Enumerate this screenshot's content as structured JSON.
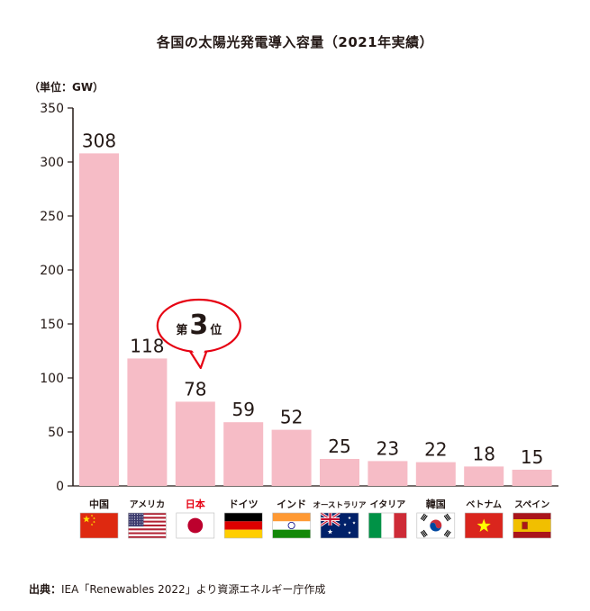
{
  "chart_data": {
    "type": "bar",
    "title": "各国の太陽光発電導入容量（2021年実績）",
    "unit_label": "（単位：GW）",
    "categories": [
      "中国",
      "アメリカ",
      "日本",
      "ドイツ",
      "インド",
      "オーストラリア",
      "イタリア",
      "韓国",
      "ベトナム",
      "スペイン"
    ],
    "values": [
      308,
      118,
      78,
      59,
      52,
      25,
      23,
      22,
      18,
      15
    ],
    "ylim": [
      0,
      350
    ],
    "yticks": [
      0,
      50,
      100,
      150,
      200,
      250,
      300,
      350
    ],
    "highlight_category": "日本",
    "callout": {
      "prefix": "第",
      "number": "3",
      "suffix": "位"
    },
    "grid": false,
    "legend": "none",
    "bar_color": "#f6bcc6",
    "highlight_label_color": "#e60012",
    "callout_color": "#e60012",
    "flags": [
      "china-flag-icon",
      "usa-flag-icon",
      "japan-flag-icon",
      "germany-flag-icon",
      "india-flag-icon",
      "australia-flag-icon",
      "italy-flag-icon",
      "korea-flag-icon",
      "vietnam-flag-icon",
      "spain-flag-icon"
    ]
  },
  "source": {
    "label": "出典：",
    "text": "IEA「Renewables 2022」より資源エネルギー庁作成"
  }
}
